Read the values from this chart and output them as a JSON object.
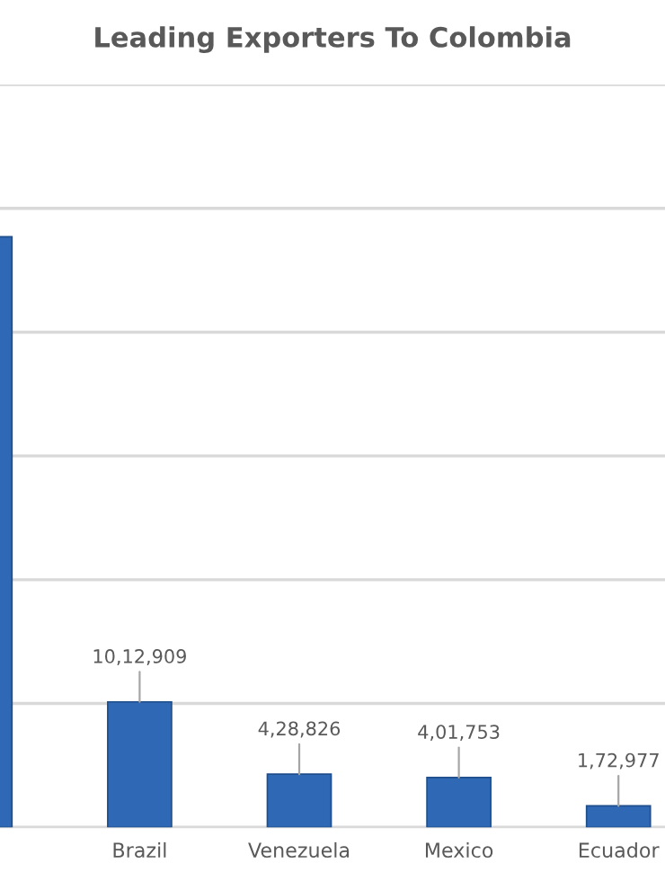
{
  "chart_data": {
    "type": "bar",
    "title": "Leading Exporters To Colombia",
    "categories": [
      null,
      "Brazil",
      "Venezuela",
      "Mexico",
      "Ecuador"
    ],
    "values": [
      4770000,
      1012909,
      428826,
      401753,
      172977
    ],
    "value_labels": [
      null,
      "10,12,909",
      "4,28,826",
      "4,01,753",
      "1,72,977"
    ],
    "color": "#2f68b4",
    "ylim": [
      0,
      6000000
    ],
    "yticks": [
      {
        "value": 0,
        "label": null
      },
      {
        "value": 1000000,
        "label": null
      },
      {
        "value": 2000000,
        "label": null
      },
      {
        "value": 3000000,
        "label": null
      },
      {
        "value": 4000000,
        "label": null
      },
      {
        "value": 5000000,
        "label": null
      },
      {
        "value": 6000000,
        "label": null
      }
    ],
    "grid": "y",
    "tick_labels": "x"
  }
}
